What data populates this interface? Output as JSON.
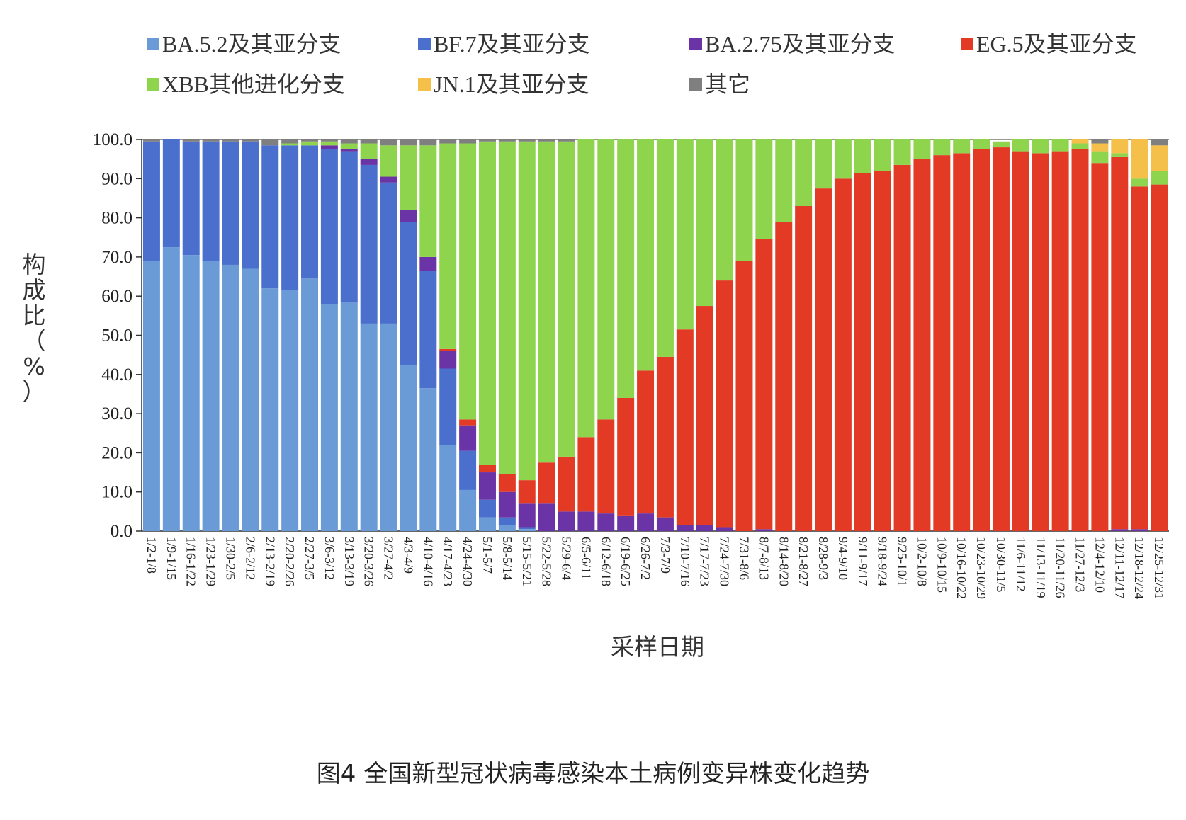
{
  "caption": "图4 全国新型冠状病毒感染本土病例变异株变化趋势",
  "chart_data": {
    "type": "bar",
    "stacked": true,
    "title": "",
    "xlabel": "采样日期",
    "ylabel": "构成比（%）",
    "ylim": [
      0,
      100
    ],
    "yticks": [
      "0.0",
      "10.0",
      "20.0",
      "30.0",
      "40.0",
      "50.0",
      "60.0",
      "70.0",
      "80.0",
      "90.0",
      "100.0"
    ],
    "legend_position": "top",
    "categories": [
      "1/2-1/8",
      "1/9-1/15",
      "1/16-1/22",
      "1/23-1/29",
      "1/30-2/5",
      "2/6-2/12",
      "2/13-2/19",
      "2/20-2/26",
      "2/27-3/5",
      "3/6-3/12",
      "3/13-3/19",
      "3/20-3/26",
      "3/27-4/2",
      "4/3-4/9",
      "4/10-4/16",
      "4/17-4/23",
      "4/24-4/30",
      "5/1-5/7",
      "5/8-5/14",
      "5/15-5/21",
      "5/22-5/28",
      "5/29-6/4",
      "6/5-6/11",
      "6/12-6/18",
      "6/19-6/25",
      "6/26-7/2",
      "7/3-7/9",
      "7/10-7/16",
      "7/17-7/23",
      "7/24-7/30",
      "7/31-8/6",
      "8/7-8/13",
      "8/14-8/20",
      "8/21-8/27",
      "8/28-9/3",
      "9/4-9/10",
      "9/11-9/17",
      "9/18-9/24",
      "9/25-10/1",
      "10/2-10/8",
      "10/9-10/15",
      "10/16-10/22",
      "10/23-10/29",
      "10/30-11/5",
      "11/6-11/12",
      "11/13-11/19",
      "11/20-11/26",
      "11/27-12/3",
      "12/4-12/10",
      "12/11-12/17",
      "12/18-12/24",
      "12/25-12/31"
    ],
    "series": [
      {
        "name": "BA.5.2及其亚分支",
        "color": "#6b9bd6",
        "values": [
          69.0,
          72.5,
          70.5,
          69.0,
          68.0,
          67.0,
          62.0,
          61.5,
          64.5,
          58.0,
          58.5,
          53.0,
          53.0,
          42.5,
          36.5,
          22.0,
          10.5,
          3.5,
          1.5,
          0.5,
          0,
          0,
          0,
          0,
          0,
          0,
          0,
          0,
          0,
          0,
          0,
          0,
          0,
          0,
          0,
          0,
          0,
          0,
          0,
          0,
          0,
          0,
          0,
          0,
          0,
          0,
          0,
          0,
          0,
          0,
          0,
          0
        ]
      },
      {
        "name": "BF.7及其亚分支",
        "color": "#4a6fcc",
        "values": [
          30.5,
          27.5,
          29.0,
          30.5,
          31.5,
          32.5,
          36.5,
          37.0,
          34.0,
          39.5,
          38.5,
          40.5,
          36.0,
          36.5,
          30.0,
          19.5,
          10.0,
          4.5,
          2.0,
          0.5,
          0,
          0,
          0,
          0,
          0,
          0,
          0,
          0,
          0,
          0,
          0,
          0,
          0,
          0,
          0,
          0,
          0,
          0,
          0,
          0,
          0,
          0,
          0,
          0,
          0,
          0,
          0,
          0,
          0,
          0,
          0,
          0
        ]
      },
      {
        "name": "BA.2.75及其亚分支",
        "color": "#6a34a6",
        "values": [
          0,
          0,
          0,
          0,
          0,
          0,
          0,
          0,
          0,
          1.0,
          0.5,
          1.5,
          1.5,
          3.0,
          3.5,
          4.5,
          6.5,
          7.0,
          6.5,
          6.0,
          7.0,
          5.0,
          5.0,
          4.5,
          4.0,
          4.5,
          3.5,
          1.5,
          1.5,
          1.0,
          0,
          0.5,
          0,
          0,
          0,
          0,
          0,
          0,
          0,
          0,
          0,
          0,
          0,
          0,
          0,
          0,
          0,
          0,
          0,
          0.5,
          0.5,
          0
        ]
      },
      {
        "name": "EG.5及其亚分支",
        "color": "#e33a26",
        "values": [
          0,
          0,
          0,
          0,
          0,
          0,
          0,
          0,
          0,
          0,
          0,
          0,
          0,
          0,
          0,
          0.5,
          1.5,
          2.0,
          4.5,
          6.0,
          10.5,
          14.0,
          19.0,
          24.0,
          30.0,
          36.5,
          41.0,
          50.0,
          56.0,
          63.0,
          69.0,
          74.0,
          79.0,
          83.0,
          87.5,
          90.0,
          91.5,
          92.0,
          93.5,
          95.0,
          96.0,
          96.5,
          97.5,
          98.0,
          97.0,
          96.5,
          97.0,
          97.5,
          94.0,
          95.0,
          87.5,
          88.5
        ]
      },
      {
        "name": "XBB其他进化分支",
        "color": "#8ed44c",
        "values": [
          0,
          0,
          0,
          0,
          0,
          0,
          0,
          0.5,
          1.0,
          1.0,
          1.5,
          4.0,
          8.0,
          16.5,
          28.5,
          52.5,
          70.5,
          82.5,
          85.0,
          86.5,
          82.0,
          80.5,
          76.0,
          71.5,
          66.0,
          59.0,
          55.5,
          48.5,
          42.5,
          36.0,
          31.0,
          25.5,
          21.0,
          17.0,
          12.5,
          10.0,
          8.5,
          8.0,
          6.5,
          5.0,
          4.0,
          3.5,
          2.5,
          1.5,
          3.0,
          3.5,
          3.0,
          1.5,
          3.0,
          1.0,
          2.0,
          3.5
        ]
      },
      {
        "name": "JN.1及其亚分支",
        "color": "#f4c04a",
        "values": [
          0,
          0,
          0,
          0,
          0,
          0,
          0,
          0,
          0,
          0,
          0,
          0,
          0,
          0,
          0,
          0,
          0,
          0,
          0,
          0,
          0,
          0,
          0,
          0,
          0,
          0,
          0,
          0,
          0,
          0,
          0,
          0,
          0,
          0,
          0,
          0,
          0,
          0,
          0,
          0,
          0,
          0,
          0,
          0,
          0,
          0,
          0,
          1.0,
          2.0,
          3.5,
          10.0,
          6.5
        ]
      },
      {
        "name": "其它",
        "color": "#7f7f7f",
        "values": [
          0.5,
          0,
          0.5,
          0.5,
          0.5,
          0.5,
          1.5,
          1.0,
          0.5,
          0.5,
          1.0,
          1.0,
          1.5,
          1.5,
          1.5,
          1.0,
          1.0,
          0.5,
          0.5,
          0.5,
          0.5,
          0.5,
          0,
          0,
          0,
          0,
          0,
          0,
          0,
          0,
          0,
          0,
          0,
          0,
          0,
          0,
          0,
          0,
          0,
          0,
          0,
          0,
          0,
          0,
          0,
          0,
          0,
          0,
          1.0,
          0,
          0,
          1.5
        ]
      }
    ]
  }
}
